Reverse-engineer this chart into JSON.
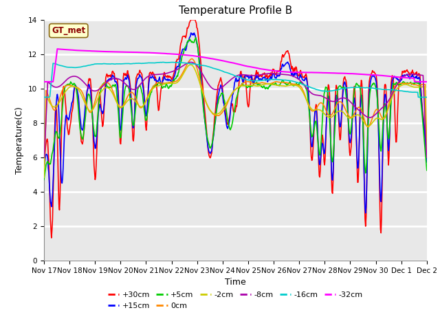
{
  "title": "Temperature Profile B",
  "xlabel": "Time",
  "ylabel": "Temperature(C)",
  "ylim": [
    0,
    14
  ],
  "xtick_labels": [
    "Nov 17",
    "Nov 18",
    "Nov 19",
    "Nov 20",
    "Nov 21",
    "Nov 22",
    "Nov 23",
    "Nov 24",
    "Nov 25",
    "Nov 26",
    "Nov 27",
    "Nov 28",
    "Nov 29",
    "Nov 30",
    "Dec 1",
    "Dec 2"
  ],
  "legend_label": "GT_met",
  "series_labels": [
    "+30cm",
    "+15cm",
    "+5cm",
    "0cm",
    "-2cm",
    "-8cm",
    "-16cm",
    "-32cm"
  ],
  "series_colors": [
    "#ff0000",
    "#0000ff",
    "#00cc00",
    "#ff8800",
    "#cccc00",
    "#aa00aa",
    "#00cccc",
    "#ff00ff"
  ],
  "series_lw": [
    1.2,
    1.2,
    1.2,
    1.2,
    1.2,
    1.2,
    1.2,
    1.5
  ],
  "background_color": "#e8e8e8",
  "title_fontsize": 11,
  "axis_fontsize": 9,
  "tick_fontsize": 7.5,
  "n_points": 720
}
